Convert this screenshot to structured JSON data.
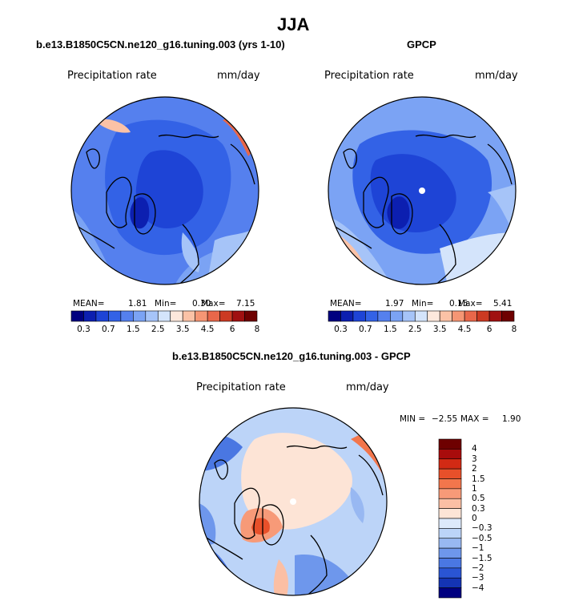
{
  "figure": {
    "title": "JJA",
    "panels": [
      {
        "subtitle": "b.e13.B1850C5CN.ne120_g16.tuning.003 (yrs 1-10)",
        "left_label": "Precipitation rate",
        "right_label": "mm/day",
        "stats": {
          "mean_label": "MEAN=",
          "mean": "1.81",
          "min_label": "Min=",
          "min": "0.30",
          "max_label": "Max=",
          "max": "7.15"
        },
        "colorbar": "abs"
      },
      {
        "subtitle": "GPCP",
        "left_label": "Precipitation rate",
        "right_label": "mm/day",
        "stats": {
          "mean_label": "MEAN=",
          "mean": "1.97",
          "min_label": "Min=",
          "min": "0.15",
          "max_label": "Max=",
          "max": "5.41"
        },
        "colorbar": "abs"
      },
      {
        "subtitle": "b.e13.B1850C5CN.ne120_g16.tuning.003 - GPCP",
        "left_label": "Precipitation rate",
        "right_label": "mm/day",
        "stats": {
          "min_label": "MIN =",
          "min": "−2.55",
          "max_label": "MAX =",
          "max": "1.90"
        },
        "colorbar": "diff"
      }
    ]
  },
  "colorbars": {
    "abs": {
      "colors": [
        "#000080",
        "#0c1fb0",
        "#1e44d6",
        "#3362e6",
        "#5580ee",
        "#7ba3f4",
        "#a6c4f8",
        "#d4e4fb",
        "#fde8dc",
        "#fbc2a6",
        "#f59674",
        "#e8674a",
        "#cc3a22",
        "#a01010",
        "#6e0000"
      ],
      "tick_labels": [
        "0.3",
        "0.7",
        "1.5",
        "2.5",
        "3.5",
        "4.5",
        "6",
        "8"
      ]
    },
    "diff": {
      "colors": [
        "#6e0000",
        "#a80c0c",
        "#d22a14",
        "#e8502a",
        "#f2764c",
        "#f79a78",
        "#fbbfa4",
        "#fde4d6",
        "#dde9fb",
        "#bcd4f8",
        "#98b8f2",
        "#6e97ec",
        "#4a77e2",
        "#2a55d4",
        "#1434b4",
        "#000080"
      ],
      "tick_labels": [
        "4",
        "3",
        "2",
        "1.5",
        "1",
        "0.5",
        "0.3",
        "0",
        "−0.3",
        "−0.5",
        "−1",
        "−1.5",
        "−2",
        "−3",
        "−4"
      ]
    }
  },
  "map_colors": {
    "ocean_deep": "#1e44d6",
    "ocean_mid": "#3362e6",
    "ocean_light": "#5580ee",
    "pale_blue": "#a6c4f8",
    "pale": "#d4e4fb",
    "warm": "#fbc2a6",
    "hot": "#e8674a",
    "dark_blue": "#0c1fb0",
    "diff_base": "#bcd4f8",
    "diff_warm": "#fde4d6",
    "diff_red": "#f2764c",
    "diff_blue": "#4a77e2"
  }
}
